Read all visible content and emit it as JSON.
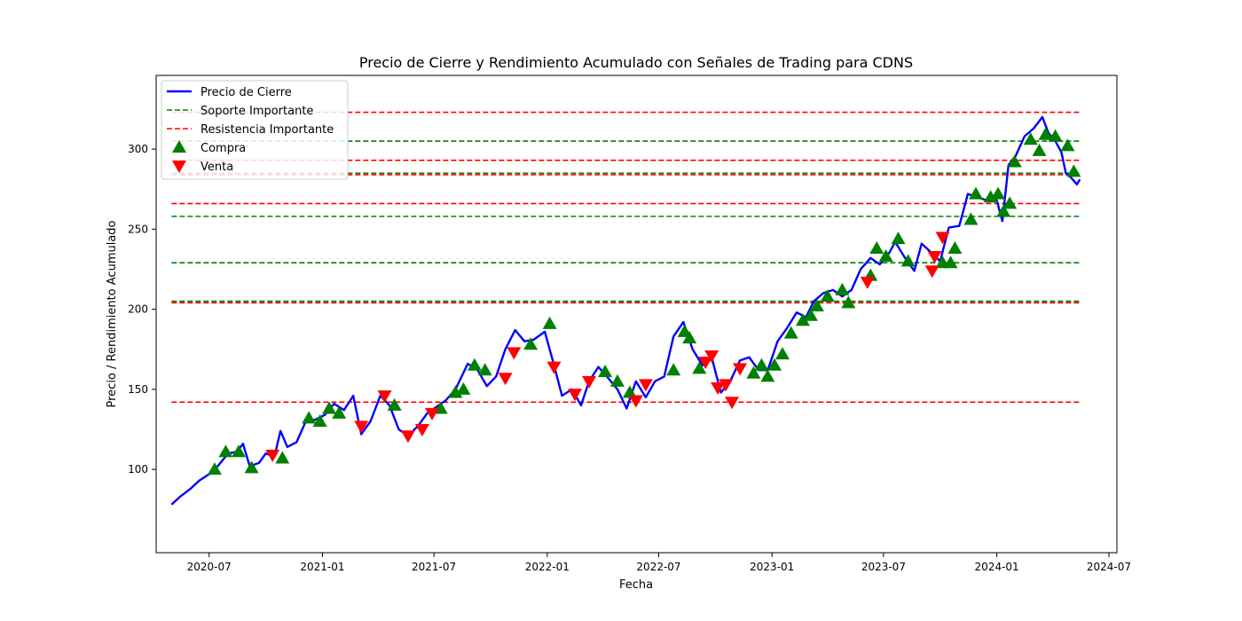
{
  "chart_data": {
    "type": "line",
    "title": "Precio de Cierre y Rendimiento Acumulado con Señales de Trading para CDNS",
    "xlabel": "Fecha",
    "ylabel": "Precio / Rendimiento Acumulado",
    "x_range": [
      "2020-04-06",
      "2024-07-14"
    ],
    "ylim": [
      48,
      346
    ],
    "grid": false,
    "legend_position": "top-left",
    "x_ticks": [
      {
        "date": "2020-07-01",
        "label": "2020-07"
      },
      {
        "date": "2021-01-01",
        "label": "2021-01"
      },
      {
        "date": "2021-07-01",
        "label": "2021-07"
      },
      {
        "date": "2022-01-01",
        "label": "2022-01"
      },
      {
        "date": "2022-07-01",
        "label": "2022-07"
      },
      {
        "date": "2023-01-01",
        "label": "2023-01"
      },
      {
        "date": "2023-07-01",
        "label": "2023-07"
      },
      {
        "date": "2024-01-01",
        "label": "2024-01"
      },
      {
        "date": "2024-07-01",
        "label": "2024-07"
      }
    ],
    "y_ticks": [
      100,
      150,
      200,
      250,
      300
    ],
    "legend": [
      {
        "key": "price",
        "label": "Precio de Cierre"
      },
      {
        "key": "support",
        "label": "Soporte Importante"
      },
      {
        "key": "resistance",
        "label": "Resistencia Importante"
      },
      {
        "key": "buy",
        "label": "Compra"
      },
      {
        "key": "sell",
        "label": "Venta"
      }
    ],
    "colors": {
      "price": "#0000ff",
      "support": "#008000",
      "resistance": "#ff0000",
      "buy": "#008000",
      "sell": "#ff0000"
    },
    "level_line_range": [
      "2020-05-01",
      "2024-05-15"
    ],
    "support_levels": [
      285,
      305,
      258,
      229,
      205
    ],
    "resistance_levels": [
      323,
      293,
      284,
      266,
      204,
      142
    ],
    "series": [
      {
        "key": "price",
        "name": "Precio de Cierre",
        "points": [
          [
            "2020-05-01",
            78
          ],
          [
            "2020-05-15",
            83
          ],
          [
            "2020-06-01",
            88
          ],
          [
            "2020-06-15",
            93
          ],
          [
            "2020-07-01",
            97
          ],
          [
            "2020-07-15",
            102
          ],
          [
            "2020-08-01",
            110
          ],
          [
            "2020-08-15",
            111
          ],
          [
            "2020-08-25",
            116
          ],
          [
            "2020-09-05",
            102
          ],
          [
            "2020-09-20",
            104
          ],
          [
            "2020-10-01",
            110
          ],
          [
            "2020-10-15",
            108
          ],
          [
            "2020-10-25",
            124
          ],
          [
            "2020-11-05",
            114
          ],
          [
            "2020-11-20",
            117
          ],
          [
            "2020-12-05",
            130
          ],
          [
            "2020-12-20",
            131
          ],
          [
            "2021-01-05",
            134
          ],
          [
            "2021-01-20",
            141
          ],
          [
            "2021-02-05",
            137
          ],
          [
            "2021-02-20",
            146
          ],
          [
            "2021-03-05",
            122
          ],
          [
            "2021-03-20",
            130
          ],
          [
            "2021-04-05",
            146
          ],
          [
            "2021-04-20",
            140
          ],
          [
            "2021-05-05",
            125
          ],
          [
            "2021-05-20",
            121
          ],
          [
            "2021-06-05",
            127
          ],
          [
            "2021-06-20",
            135
          ],
          [
            "2021-07-05",
            139
          ],
          [
            "2021-07-20",
            143
          ],
          [
            "2021-08-05",
            150
          ],
          [
            "2021-08-25",
            166
          ],
          [
            "2021-09-10",
            162
          ],
          [
            "2021-09-25",
            152
          ],
          [
            "2021-10-10",
            158
          ],
          [
            "2021-10-25",
            175
          ],
          [
            "2021-11-10",
            187
          ],
          [
            "2021-11-25",
            180
          ],
          [
            "2021-12-10",
            181
          ],
          [
            "2021-12-28",
            186
          ],
          [
            "2022-01-10",
            168
          ],
          [
            "2022-01-25",
            146
          ],
          [
            "2022-02-10",
            150
          ],
          [
            "2022-02-25",
            140
          ],
          [
            "2022-03-10",
            155
          ],
          [
            "2022-03-25",
            164
          ],
          [
            "2022-04-10",
            157
          ],
          [
            "2022-04-25",
            150
          ],
          [
            "2022-05-10",
            138
          ],
          [
            "2022-05-25",
            155
          ],
          [
            "2022-06-10",
            145
          ],
          [
            "2022-06-25",
            155
          ],
          [
            "2022-07-10",
            158
          ],
          [
            "2022-07-25",
            183
          ],
          [
            "2022-08-10",
            192
          ],
          [
            "2022-08-25",
            175
          ],
          [
            "2022-09-10",
            165
          ],
          [
            "2022-09-25",
            170
          ],
          [
            "2022-10-10",
            148
          ],
          [
            "2022-10-25",
            155
          ],
          [
            "2022-11-10",
            168
          ],
          [
            "2022-11-25",
            170
          ],
          [
            "2022-12-10",
            162
          ],
          [
            "2022-12-25",
            162
          ],
          [
            "2023-01-10",
            180
          ],
          [
            "2023-01-25",
            188
          ],
          [
            "2023-02-10",
            198
          ],
          [
            "2023-02-25",
            195
          ],
          [
            "2023-03-10",
            205
          ],
          [
            "2023-03-25",
            210
          ],
          [
            "2023-04-10",
            212
          ],
          [
            "2023-04-25",
            208
          ],
          [
            "2023-05-10",
            212
          ],
          [
            "2023-05-25",
            225
          ],
          [
            "2023-06-10",
            232
          ],
          [
            "2023-06-25",
            228
          ],
          [
            "2023-07-10",
            235
          ],
          [
            "2023-07-20",
            242
          ],
          [
            "2023-08-05",
            232
          ],
          [
            "2023-08-20",
            224
          ],
          [
            "2023-09-01",
            241
          ],
          [
            "2023-09-15",
            236
          ],
          [
            "2023-10-01",
            230
          ],
          [
            "2023-10-15",
            251
          ],
          [
            "2023-11-01",
            252
          ],
          [
            "2023-11-15",
            272
          ],
          [
            "2023-12-01",
            270
          ],
          [
            "2023-12-15",
            268
          ],
          [
            "2024-01-01",
            268
          ],
          [
            "2024-01-10",
            255
          ],
          [
            "2024-01-20",
            290
          ],
          [
            "2024-02-01",
            296
          ],
          [
            "2024-02-15",
            308
          ],
          [
            "2024-03-01",
            313
          ],
          [
            "2024-03-15",
            320
          ],
          [
            "2024-03-25",
            310
          ],
          [
            "2024-04-05",
            305
          ],
          [
            "2024-04-15",
            298
          ],
          [
            "2024-04-22",
            285
          ],
          [
            "2024-05-01",
            282
          ],
          [
            "2024-05-10",
            278
          ],
          [
            "2024-05-15",
            281
          ]
        ]
      }
    ],
    "buy_signals": [
      [
        "2020-07-10",
        100
      ],
      [
        "2020-07-28",
        111
      ],
      [
        "2020-08-18",
        111
      ],
      [
        "2020-09-08",
        101
      ],
      [
        "2020-10-28",
        107
      ],
      [
        "2020-12-10",
        132
      ],
      [
        "2020-12-28",
        130
      ],
      [
        "2021-01-12",
        138
      ],
      [
        "2021-01-28",
        135
      ],
      [
        "2021-04-28",
        140
      ],
      [
        "2021-07-12",
        138
      ],
      [
        "2021-08-05",
        148
      ],
      [
        "2021-08-18",
        150
      ],
      [
        "2021-09-05",
        165
      ],
      [
        "2021-09-22",
        162
      ],
      [
        "2021-12-05",
        178
      ],
      [
        "2022-01-05",
        191
      ],
      [
        "2022-04-05",
        161
      ],
      [
        "2022-04-25",
        155
      ],
      [
        "2022-05-15",
        148
      ],
      [
        "2022-07-25",
        162
      ],
      [
        "2022-08-12",
        186
      ],
      [
        "2022-08-20",
        182
      ],
      [
        "2022-09-05",
        163
      ],
      [
        "2022-12-02",
        160
      ],
      [
        "2022-12-15",
        165
      ],
      [
        "2022-12-25",
        158
      ],
      [
        "2023-01-05",
        165
      ],
      [
        "2023-01-18",
        172
      ],
      [
        "2023-02-01",
        185
      ],
      [
        "2023-02-20",
        193
      ],
      [
        "2023-03-05",
        196
      ],
      [
        "2023-03-15",
        202
      ],
      [
        "2023-04-01",
        208
      ],
      [
        "2023-04-25",
        212
      ],
      [
        "2023-05-05",
        204
      ],
      [
        "2023-06-10",
        221
      ],
      [
        "2023-06-20",
        238
      ],
      [
        "2023-07-05",
        233
      ],
      [
        "2023-07-25",
        244
      ],
      [
        "2023-08-10",
        230
      ],
      [
        "2023-10-05",
        229
      ],
      [
        "2023-10-18",
        229
      ],
      [
        "2023-10-25",
        238
      ],
      [
        "2023-11-20",
        256
      ],
      [
        "2023-11-28",
        272
      ],
      [
        "2023-12-22",
        270
      ],
      [
        "2024-01-03",
        272
      ],
      [
        "2024-01-12",
        261
      ],
      [
        "2024-01-22",
        266
      ],
      [
        "2024-01-30",
        292
      ],
      [
        "2024-02-25",
        306
      ],
      [
        "2024-03-10",
        299
      ],
      [
        "2024-03-20",
        309
      ],
      [
        "2024-04-05",
        308
      ],
      [
        "2024-04-25",
        302
      ],
      [
        "2024-05-05",
        286
      ]
    ],
    "sell_signals": [
      [
        "2020-10-12",
        109
      ],
      [
        "2021-03-05",
        127
      ],
      [
        "2021-04-12",
        146
      ],
      [
        "2021-05-20",
        121
      ],
      [
        "2021-06-12",
        125
      ],
      [
        "2021-06-28",
        135
      ],
      [
        "2021-10-25",
        157
      ],
      [
        "2021-11-08",
        173
      ],
      [
        "2022-01-12",
        164
      ],
      [
        "2022-02-15",
        147
      ],
      [
        "2022-03-10",
        155
      ],
      [
        "2022-05-25",
        143
      ],
      [
        "2022-06-10",
        153
      ],
      [
        "2022-09-15",
        167
      ],
      [
        "2022-09-25",
        171
      ],
      [
        "2022-10-05",
        151
      ],
      [
        "2022-10-18",
        153
      ],
      [
        "2022-10-28",
        142
      ],
      [
        "2022-11-10",
        163
      ],
      [
        "2023-06-05",
        217
      ],
      [
        "2023-09-18",
        224
      ],
      [
        "2023-09-22",
        233
      ],
      [
        "2023-10-05",
        245
      ]
    ]
  }
}
